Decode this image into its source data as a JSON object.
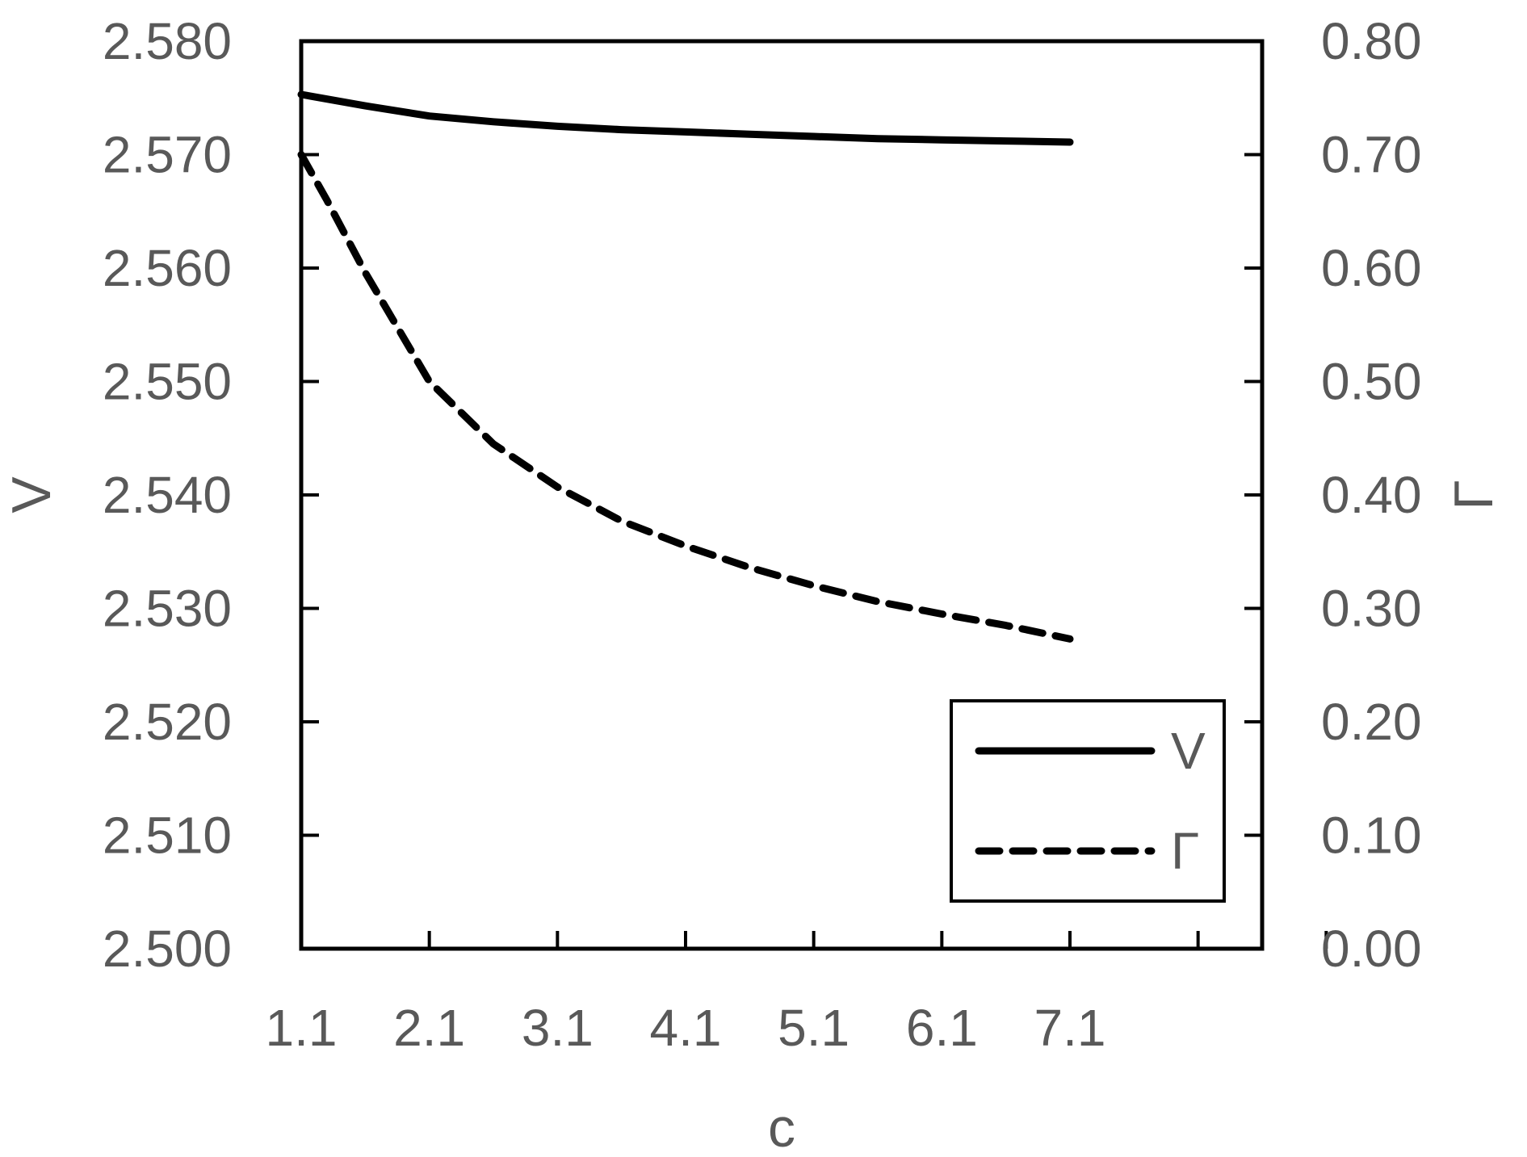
{
  "chart_data": {
    "type": "line",
    "xlabel": "c",
    "ylabel_left": "V",
    "ylabel_right": "Γ",
    "x_ticks": [
      "1.1",
      "2.1",
      "3.1",
      "4.1",
      "5.1",
      "6.1",
      "7.1"
    ],
    "y_left_ticks": [
      "2.500",
      "2.510",
      "2.520",
      "2.530",
      "2.540",
      "2.550",
      "2.560",
      "2.570",
      "2.580"
    ],
    "y_right_ticks": [
      "0.00",
      "0.10",
      "0.20",
      "0.30",
      "0.40",
      "0.50",
      "0.60",
      "0.70",
      "0.80"
    ],
    "xlim": [
      1.1,
      8.6
    ],
    "ylim_left": [
      2.5,
      2.58
    ],
    "ylim_right": [
      0.0,
      0.8
    ],
    "legend_position": "bottom-right",
    "grid": false,
    "series": [
      {
        "name": "V",
        "axis": "left",
        "style": "solid",
        "x": [
          1.1,
          1.6,
          2.1,
          2.6,
          3.1,
          3.6,
          4.1,
          4.6,
          5.1,
          5.6,
          6.1,
          6.6,
          7.1
        ],
        "y": [
          2.5753,
          2.5743,
          2.5734,
          2.5729,
          2.5725,
          2.5722,
          2.572,
          2.5718,
          2.5716,
          2.5714,
          2.5713,
          2.5712,
          2.5711
        ]
      },
      {
        "name": "Γ",
        "axis": "right",
        "style": "dashed",
        "x": [
          1.1,
          1.3,
          1.6,
          1.85,
          2.1,
          2.6,
          3.1,
          3.6,
          4.1,
          4.6,
          5.1,
          5.6,
          6.1,
          6.6,
          7.1
        ],
        "y": [
          0.7,
          0.66,
          0.596,
          0.548,
          0.5,
          0.445,
          0.407,
          0.377,
          0.355,
          0.336,
          0.32,
          0.306,
          0.295,
          0.285,
          0.273
        ]
      }
    ]
  }
}
